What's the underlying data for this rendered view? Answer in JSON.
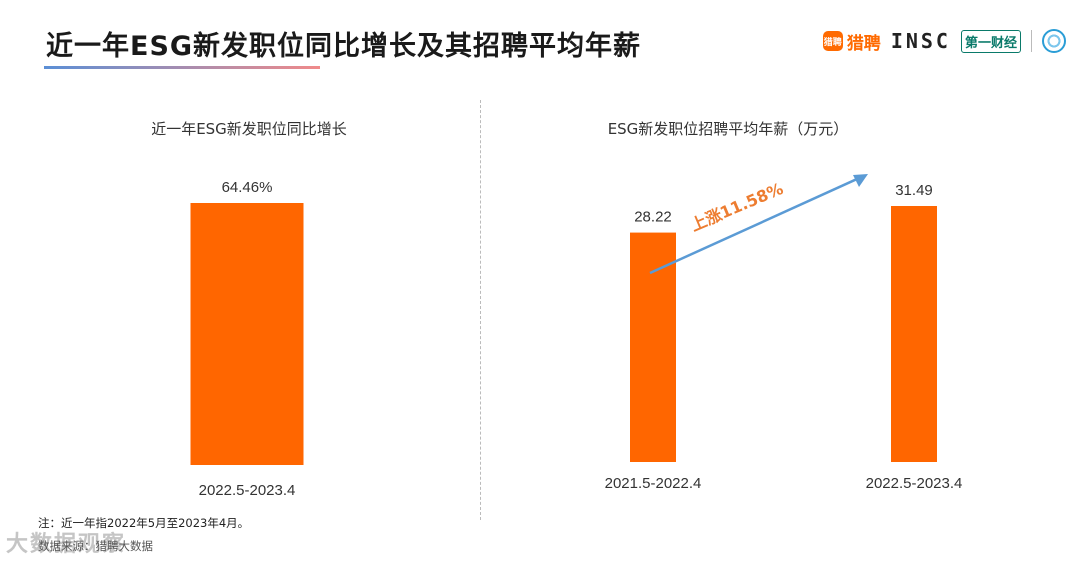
{
  "page": {
    "title": "近一年ESG新发职位同比增长及其招聘平均年薪",
    "logos": {
      "liepin_icon_text": "猎聘",
      "liepin_text": "猎聘",
      "insc_text": "INSC",
      "yicai_text": "第一财经"
    },
    "note": "注：近一年指2022年5月至2023年4月。",
    "source": "数据来源：猎聘大数据",
    "watermark": "大数据观察"
  },
  "colors": {
    "bar": "#ff6600",
    "arrow": "#5b9bd5",
    "annotation": "#ed7d31"
  },
  "chart_data": [
    {
      "type": "bar",
      "title": "近一年ESG新发职位同比增长",
      "categories": [
        "2022.5-2023.4"
      ],
      "values": [
        64.46
      ],
      "value_labels": [
        "64.46%"
      ]
    },
    {
      "type": "bar",
      "title": "ESG新发职位招聘平均年薪（万元）",
      "categories": [
        "2021.5-2022.4",
        "2022.5-2023.4"
      ],
      "values": [
        28.22,
        31.49
      ],
      "value_labels": [
        "28.22",
        "31.49"
      ],
      "annotation": "上涨11.58%"
    }
  ]
}
